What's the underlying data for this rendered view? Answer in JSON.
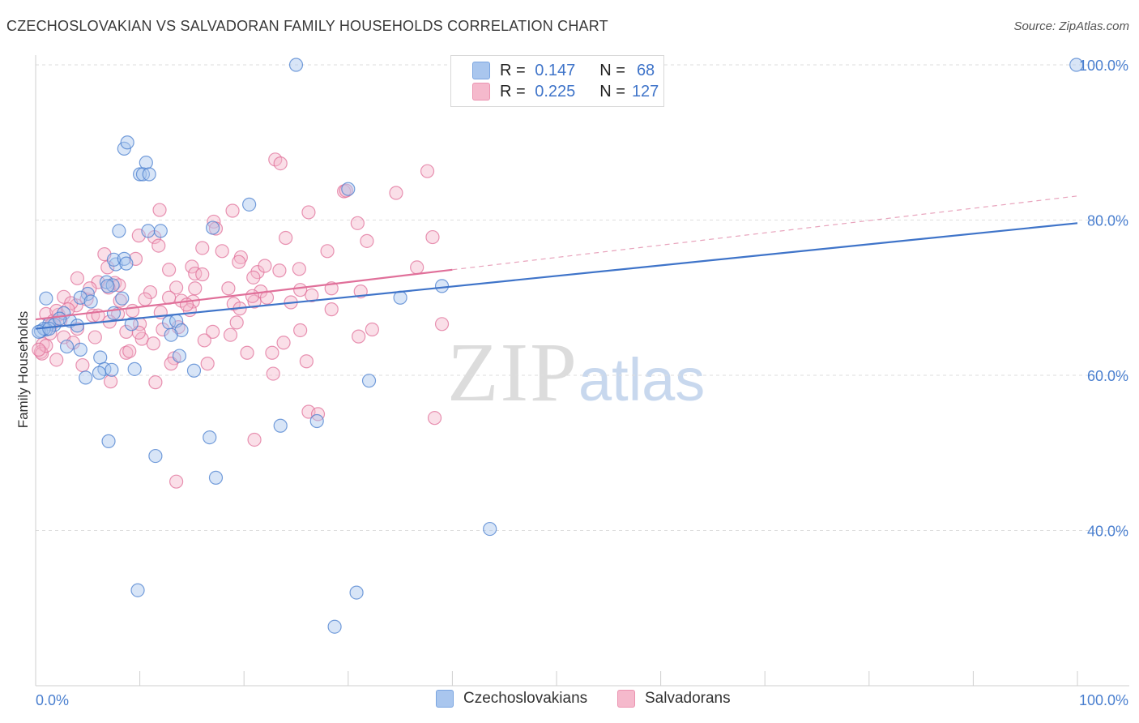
{
  "title": "CZECHOSLOVAKIAN VS SALVADORAN FAMILY HOUSEHOLDS CORRELATION CHART",
  "source": "Source: ZipAtlas.com",
  "watermark": {
    "zip": "ZIP",
    "atlas": "atlas"
  },
  "legend": {
    "rows": [
      {
        "r_label": "R =",
        "r_value": "0.147",
        "n_label": "N =",
        "n_value": "68",
        "color": "#a9c6ee"
      },
      {
        "r_label": "R =",
        "r_value": "0.225",
        "n_label": "N =",
        "n_value": "127",
        "color": "#f5b9cc"
      }
    ]
  },
  "bottom_legend": [
    "Czechoslovakians",
    "Salvadorans"
  ],
  "chart_data": {
    "type": "scatter",
    "title": "CZECHOSLOVAKIAN VS SALVADORAN FAMILY HOUSEHOLDS CORRELATION CHART",
    "xlabel": "",
    "ylabel": "Family Households",
    "xlim": [
      0,
      100
    ],
    "ylim": [
      20,
      102
    ],
    "x_tick_labels": [
      "0.0%",
      "100.0%"
    ],
    "y_ticks": [
      40,
      60,
      80,
      100
    ],
    "y_tick_labels": [
      "40.0%",
      "60.0%",
      "80.0%",
      "100.0%"
    ],
    "grid": true,
    "colors": {
      "blue": "#4a7fcf",
      "pink": "#e0709a",
      "blue_fill": "#a9c6ee",
      "pink_fill": "#f5b9cc"
    },
    "series": [
      {
        "name": "Czechoslovakians",
        "color": "#4a7fcf",
        "trend": {
          "x": [
            0,
            100
          ],
          "y": [
            66.0,
            79.6
          ],
          "style": "solid"
        },
        "points": [
          [
            25.0,
            100.0
          ],
          [
            99.9,
            100.0
          ],
          [
            8.5,
            89.2
          ],
          [
            8.8,
            90.0
          ],
          [
            10.6,
            87.4
          ],
          [
            10.0,
            85.9
          ],
          [
            10.3,
            85.9
          ],
          [
            10.9,
            85.9
          ],
          [
            20.5,
            82.0
          ],
          [
            30.0,
            84.0
          ],
          [
            8.0,
            78.6
          ],
          [
            10.8,
            78.6
          ],
          [
            12.0,
            78.6
          ],
          [
            17.0,
            79.0
          ],
          [
            7.7,
            74.3
          ],
          [
            7.5,
            74.9
          ],
          [
            8.5,
            75.0
          ],
          [
            8.7,
            74.4
          ],
          [
            6.8,
            72.0
          ],
          [
            7.4,
            71.6
          ],
          [
            6.9,
            71.5
          ],
          [
            5.0,
            70.5
          ],
          [
            4.3,
            70.0
          ],
          [
            1.0,
            69.9
          ],
          [
            5.3,
            69.5
          ],
          [
            8.3,
            69.9
          ],
          [
            7.5,
            68.0
          ],
          [
            2.7,
            68.0
          ],
          [
            3.3,
            67.0
          ],
          [
            1.3,
            66.6
          ],
          [
            1.8,
            66.5
          ],
          [
            4.0,
            66.4
          ],
          [
            2.3,
            67.3
          ],
          [
            1.0,
            65.9
          ],
          [
            0.5,
            65.7
          ],
          [
            0.8,
            66.0
          ],
          [
            0.3,
            65.6
          ],
          [
            1.3,
            66.0
          ],
          [
            9.2,
            66.6
          ],
          [
            12.8,
            66.8
          ],
          [
            13.5,
            67.0
          ],
          [
            14.0,
            65.8
          ],
          [
            13.0,
            65.2
          ],
          [
            4.3,
            63.3
          ],
          [
            3.0,
            63.7
          ],
          [
            13.8,
            62.5
          ],
          [
            6.2,
            62.3
          ],
          [
            9.5,
            60.8
          ],
          [
            6.6,
            60.8
          ],
          [
            7.3,
            60.7
          ],
          [
            6.1,
            60.3
          ],
          [
            4.8,
            59.7
          ],
          [
            15.2,
            60.6
          ],
          [
            32.0,
            59.3
          ],
          [
            35.0,
            70.0
          ],
          [
            39.0,
            71.5
          ],
          [
            23.5,
            53.5
          ],
          [
            27.0,
            54.1
          ],
          [
            16.7,
            52.0
          ],
          [
            7.0,
            51.5
          ],
          [
            11.5,
            49.6
          ],
          [
            17.3,
            46.8
          ],
          [
            43.6,
            40.2
          ],
          [
            9.8,
            32.3
          ],
          [
            30.8,
            32.0
          ],
          [
            28.7,
            27.6
          ]
        ]
      },
      {
        "name": "Salvadorans",
        "color": "#e0709a",
        "trend": {
          "x": [
            0,
            40
          ],
          "y": [
            67.2,
            73.6
          ],
          "style": "solid",
          "extension": {
            "x": [
              40,
              100
            ],
            "y": [
              73.6,
              83.1
            ],
            "style": "dashed"
          }
        },
        "points": [
          [
            23.0,
            87.8
          ],
          [
            23.5,
            87.3
          ],
          [
            37.6,
            86.3
          ],
          [
            29.6,
            83.7
          ],
          [
            34.6,
            83.5
          ],
          [
            29.8,
            83.8
          ],
          [
            11.9,
            81.3
          ],
          [
            18.9,
            81.2
          ],
          [
            26.2,
            81.0
          ],
          [
            17.1,
            79.8
          ],
          [
            30.9,
            79.6
          ],
          [
            17.3,
            78.9
          ],
          [
            11.4,
            77.8
          ],
          [
            9.9,
            78.0
          ],
          [
            24.0,
            77.7
          ],
          [
            38.1,
            77.8
          ],
          [
            16.0,
            76.4
          ],
          [
            17.9,
            76.0
          ],
          [
            28.0,
            76.0
          ],
          [
            19.7,
            75.2
          ],
          [
            6.6,
            75.6
          ],
          [
            9.6,
            75.0
          ],
          [
            6.9,
            73.9
          ],
          [
            12.8,
            73.6
          ],
          [
            15.0,
            74.0
          ],
          [
            15.3,
            73.1
          ],
          [
            21.3,
            73.3
          ],
          [
            22.0,
            74.1
          ],
          [
            23.4,
            73.5
          ],
          [
            25.3,
            73.7
          ],
          [
            36.6,
            73.9
          ],
          [
            4.0,
            72.5
          ],
          [
            20.9,
            72.6
          ],
          [
            6.0,
            72.0
          ],
          [
            7.6,
            71.9
          ],
          [
            8.0,
            71.6
          ],
          [
            7.0,
            71.3
          ],
          [
            13.5,
            71.3
          ],
          [
            15.3,
            71.2
          ],
          [
            11.0,
            70.7
          ],
          [
            21.6,
            70.8
          ],
          [
            25.4,
            71.0
          ],
          [
            28.4,
            71.2
          ],
          [
            31.2,
            70.8
          ],
          [
            2.7,
            70.1
          ],
          [
            4.9,
            69.8
          ],
          [
            10.5,
            69.8
          ],
          [
            12.8,
            70.0
          ],
          [
            14.0,
            69.6
          ],
          [
            15.1,
            69.5
          ],
          [
            19.0,
            69.2
          ],
          [
            21.0,
            69.5
          ],
          [
            19.6,
            68.6
          ],
          [
            3.9,
            69.0
          ],
          [
            3.4,
            69.3
          ],
          [
            9.3,
            68.3
          ],
          [
            14.8,
            68.4
          ],
          [
            5.5,
            67.7
          ],
          [
            28.4,
            68.5
          ],
          [
            2.2,
            67.8
          ],
          [
            1.0,
            67.9
          ],
          [
            6.0,
            67.7
          ],
          [
            7.9,
            67.9
          ],
          [
            12.0,
            68.1
          ],
          [
            1.7,
            67.0
          ],
          [
            1.5,
            66.5
          ],
          [
            2.4,
            67.1
          ],
          [
            4.0,
            66.0
          ],
          [
            10.0,
            66.6
          ],
          [
            12.2,
            65.9
          ],
          [
            13.7,
            66.2
          ],
          [
            19.3,
            66.8
          ],
          [
            8.7,
            65.6
          ],
          [
            17.0,
            65.6
          ],
          [
            18.7,
            65.2
          ],
          [
            25.4,
            65.8
          ],
          [
            32.3,
            65.9
          ],
          [
            39.0,
            66.6
          ],
          [
            31.0,
            65.0
          ],
          [
            5.7,
            64.9
          ],
          [
            2.7,
            64.9
          ],
          [
            10.2,
            64.7
          ],
          [
            11.3,
            64.1
          ],
          [
            16.2,
            64.5
          ],
          [
            0.7,
            64.0
          ],
          [
            0.5,
            63.0
          ],
          [
            0.6,
            62.8
          ],
          [
            1.0,
            63.8
          ],
          [
            0.3,
            63.3
          ],
          [
            8.7,
            62.9
          ],
          [
            9.0,
            63.1
          ],
          [
            20.3,
            62.9
          ],
          [
            22.7,
            62.9
          ],
          [
            23.8,
            64.2
          ],
          [
            13.3,
            62.2
          ],
          [
            13.0,
            61.5
          ],
          [
            16.5,
            61.5
          ],
          [
            26.0,
            61.8
          ],
          [
            2.0,
            62.0
          ],
          [
            4.5,
            61.3
          ],
          [
            7.2,
            59.2
          ],
          [
            11.5,
            59.1
          ],
          [
            22.8,
            60.2
          ],
          [
            26.2,
            55.3
          ],
          [
            27.1,
            55.0
          ],
          [
            38.3,
            54.5
          ],
          [
            21.0,
            51.7
          ],
          [
            13.5,
            46.3
          ],
          [
            2.0,
            68.3
          ],
          [
            3.1,
            68.5
          ],
          [
            14.5,
            69.1
          ],
          [
            24.5,
            69.4
          ],
          [
            18.5,
            71.2
          ],
          [
            5.2,
            71.2
          ],
          [
            16.0,
            73.0
          ],
          [
            7.1,
            66.9
          ],
          [
            9.9,
            65.5
          ],
          [
            3.6,
            64.2
          ],
          [
            1.4,
            65.4
          ],
          [
            22.2,
            70.0
          ],
          [
            26.5,
            70.3
          ],
          [
            8.1,
            69.6
          ],
          [
            19.5,
            74.6
          ],
          [
            31.8,
            77.3
          ],
          [
            11.8,
            76.7
          ],
          [
            20.8,
            70.2
          ]
        ]
      }
    ]
  }
}
